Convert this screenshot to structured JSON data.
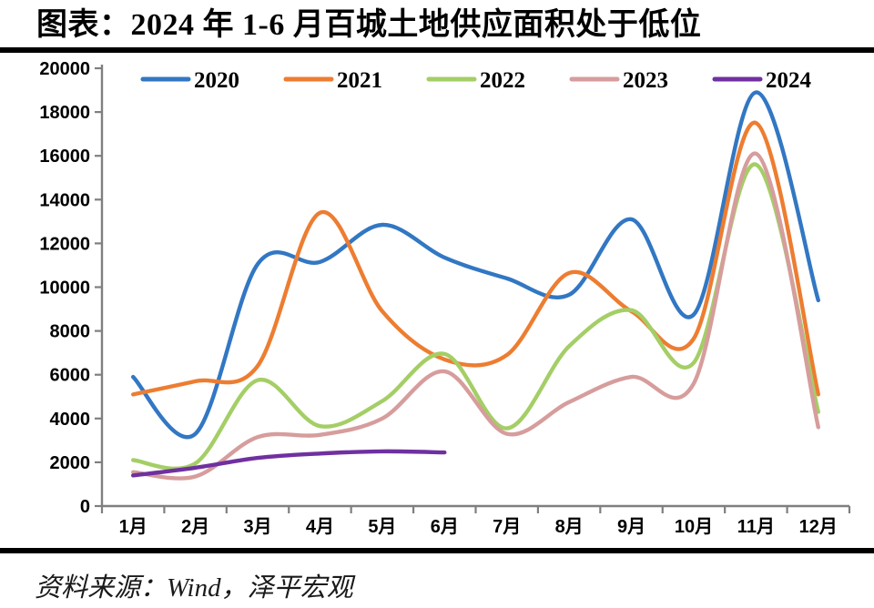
{
  "title": "图表：2024 年 1-6 月百城土地供应面积处于低位",
  "source": "资料来源：Wind，泽平宏观",
  "colors": {
    "axis": "#7f7f7f",
    "text": "#000000",
    "divider": "#000000"
  },
  "chart_data": {
    "type": "line",
    "title": "2024 年 1-6 月百城土地供应面积处于低位",
    "categories": [
      "1月",
      "2月",
      "3月",
      "4月",
      "5月",
      "6月",
      "7月",
      "8月",
      "9月",
      "10月",
      "11月",
      "12月"
    ],
    "series": [
      {
        "name": "2020",
        "color": "#3277C3",
        "values": [
          5900,
          3300,
          11050,
          11150,
          12850,
          11350,
          10400,
          9650,
          13100,
          8750,
          18900,
          9400
        ]
      },
      {
        "name": "2021",
        "color": "#ED7D31",
        "values": [
          5100,
          5700,
          6400,
          13400,
          8900,
          6700,
          6900,
          10650,
          8900,
          7650,
          17500,
          5100
        ]
      },
      {
        "name": "2022",
        "color": "#A4CE66",
        "values": [
          2100,
          1950,
          5750,
          3650,
          4800,
          6950,
          3550,
          7300,
          8950,
          6550,
          15600,
          4300
        ]
      },
      {
        "name": "2023",
        "color": "#D69D9C",
        "values": [
          1550,
          1350,
          3150,
          3250,
          4000,
          6150,
          3300,
          4750,
          5900,
          5600,
          16100,
          3600
        ]
      },
      {
        "name": "2024",
        "color": "#7030A0",
        "values": [
          1400,
          1750,
          2200,
          2400,
          2500,
          2450
        ]
      }
    ],
    "xlabel": "",
    "ylabel": "",
    "ylim": [
      0,
      20000
    ],
    "ytick_step": 2000,
    "grid": false,
    "smooth": true,
    "legend_position": "top"
  }
}
